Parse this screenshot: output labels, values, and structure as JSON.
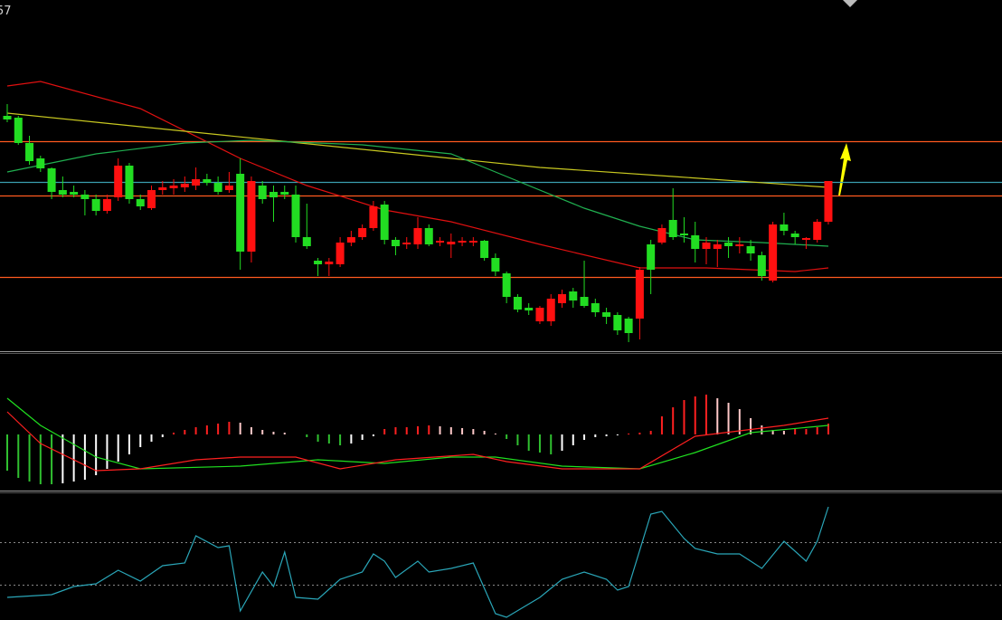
{
  "chart_data": [
    {
      "type": "candlestick",
      "title": "57",
      "open": [
        272,
        270,
        242,
        225,
        214,
        190,
        188,
        185,
        180,
        167,
        182,
        217,
        180,
        170,
        190,
        192,
        193,
        195,
        202,
        198,
        190,
        208,
        122,
        195,
        188,
        188,
        185,
        138,
        112,
        108,
        108,
        132,
        138,
        148,
        174,
        135,
        130,
        130,
        148,
        132,
        130,
        132,
        132,
        134,
        115,
        98,
        72,
        60,
        45,
        45,
        65,
        78,
        72,
        65,
        55,
        52,
        48,
        48,
        130,
        132,
        157,
        142,
        140,
        125,
        125,
        132,
        128,
        128,
        118,
        90,
        152,
        142,
        135,
        135,
        155
      ],
      "high": [
        285,
        272,
        250,
        228,
        215,
        205,
        195,
        190,
        185,
        185,
        225,
        220,
        185,
        195,
        200,
        202,
        205,
        215,
        208,
        205,
        210,
        225,
        205,
        200,
        195,
        195,
        195,
        175,
        115,
        115,
        138,
        145,
        152,
        178,
        178,
        138,
        138,
        160,
        152,
        138,
        142,
        138,
        138,
        135,
        120,
        100,
        75,
        65,
        62,
        75,
        80,
        82,
        112,
        70,
        60,
        55,
        50,
        105,
        135,
        152,
        192,
        160,
        155,
        138,
        135,
        138,
        138,
        135,
        122,
        155,
        165,
        145,
        138,
        158,
        200
      ],
      "low": [
        265,
        240,
        218,
        210,
        180,
        182,
        182,
        162,
        162,
        164,
        178,
        175,
        168,
        168,
        185,
        185,
        188,
        190,
        195,
        185,
        187,
        102,
        110,
        175,
        155,
        180,
        132,
        125,
        95,
        95,
        105,
        128,
        135,
        145,
        130,
        118,
        125,
        125,
        128,
        128,
        115,
        128,
        128,
        112,
        95,
        65,
        55,
        52,
        42,
        40,
        60,
        60,
        60,
        50,
        42,
        30,
        22,
        25,
        75,
        130,
        135,
        132,
        110,
        108,
        105,
        115,
        120,
        112,
        90,
        88,
        140,
        130,
        125,
        132,
        152
      ],
      "close": [
        268,
        242,
        222,
        214,
        188,
        185,
        185,
        180,
        167,
        180,
        217,
        180,
        172,
        190,
        193,
        195,
        197,
        202,
        198,
        188,
        195,
        122,
        200,
        180,
        182,
        185,
        138,
        128,
        108,
        111,
        132,
        138,
        148,
        172,
        135,
        128,
        132,
        148,
        130,
        134,
        133,
        134,
        134,
        115,
        100,
        72,
        58,
        57,
        60,
        70,
        75,
        68,
        62,
        55,
        50,
        35,
        32,
        102,
        102,
        148,
        138,
        140,
        125,
        132,
        130,
        128,
        130,
        120,
        95,
        152,
        145,
        138,
        137,
        155,
        200
      ],
      "up_color": "#ff1010",
      "down_color": "#22dd22",
      "series": [
        {
          "color": "#e01010",
          "x": [
            0,
            3,
            12,
            21,
            27,
            34,
            40,
            48,
            57,
            63,
            71,
            74
          ],
          "values": [
            305,
            310,
            280,
            225,
            195,
            168,
            155,
            130,
            104,
            104,
            100,
            104
          ]
        },
        {
          "color": "#c8c820",
          "x": [
            0,
            12,
            24,
            36,
            48,
            60,
            74
          ],
          "values": [
            275,
            260,
            245,
            230,
            215,
            205,
            193
          ]
        },
        {
          "color": "#20b050",
          "x": [
            0,
            8,
            16,
            22,
            32,
            40,
            45,
            52,
            57,
            62,
            68,
            74
          ],
          "values": [
            210,
            230,
            242,
            245,
            240,
            230,
            205,
            170,
            150,
            135,
            132,
            128
          ]
        }
      ],
      "levels": [
        {
          "value": 244,
          "color": "#ff5a1f"
        },
        {
          "value": 199,
          "color": "#3a9fb0"
        },
        {
          "value": 184,
          "color": "#ff5a1f"
        },
        {
          "value": 94,
          "color": "#ff5a1f"
        }
      ],
      "ylim": [
        12,
        400
      ]
    },
    {
      "type": "macd",
      "values": [
        -40,
        -48,
        -52,
        -55,
        -55,
        -54,
        -52,
        -50,
        -45,
        -38,
        -30,
        -22,
        -14,
        -8,
        -3,
        2,
        5,
        8,
        10,
        12,
        14,
        13,
        8,
        5,
        3,
        2,
        0,
        -3,
        -8,
        -10,
        -12,
        -10,
        -6,
        -2,
        6,
        8,
        8,
        9,
        10,
        9,
        8,
        7,
        6,
        4,
        1,
        -5,
        -12,
        -18,
        -20,
        -22,
        -18,
        -12,
        -6,
        -3,
        -2,
        -1,
        1,
        2,
        4,
        20,
        30,
        38,
        42,
        44,
        40,
        35,
        28,
        18,
        10,
        5,
        4,
        6,
        6,
        8,
        12
      ],
      "rise_up_color": "#ff2020",
      "fall_up_color": "#ffc8c8",
      "fall_down_color": "#30c030",
      "rise_down_color": "#ffffff",
      "series": [
        {
          "color": "#20e020",
          "x": [
            0,
            3,
            8,
            12,
            21,
            28,
            34,
            40,
            44,
            50,
            57,
            62,
            67,
            74
          ],
          "values": [
            40,
            10,
            -25,
            -38,
            -35,
            -28,
            -32,
            -25,
            -25,
            -35,
            -38,
            -20,
            2,
            10
          ]
        },
        {
          "color": "#ff2020",
          "x": [
            0,
            3,
            8,
            12,
            17,
            21,
            26,
            30,
            35,
            42,
            45,
            50,
            57,
            62,
            70,
            74
          ],
          "values": [
            25,
            -10,
            -40,
            -38,
            -28,
            -25,
            -25,
            -38,
            -28,
            -22,
            -30,
            -38,
            -38,
            -2,
            10,
            18
          ]
        }
      ],
      "ylim": [
        -62,
        88
      ]
    },
    {
      "type": "line",
      "series": [
        {
          "color": "#2aa6b8",
          "x": [
            0,
            4,
            6,
            8,
            10,
            12,
            14,
            16,
            17,
            19,
            20,
            21,
            23,
            24,
            25,
            26,
            28,
            30,
            32,
            33,
            34,
            35,
            37,
            38,
            40,
            42,
            44,
            45,
            48,
            50,
            52,
            54,
            55,
            56,
            58,
            59,
            61,
            62,
            64,
            66,
            68,
            70,
            72,
            73,
            74
          ],
          "values": [
            25,
            28,
            37,
            40,
            55,
            43,
            60,
            63,
            93,
            80,
            82,
            10,
            53,
            37,
            75,
            25,
            23,
            45,
            53,
            73,
            65,
            47,
            65,
            53,
            57,
            63,
            7,
            3,
            25,
            45,
            53,
            45,
            33,
            37,
            117,
            120,
            90,
            79,
            73,
            73,
            57,
            87,
            65,
            87,
            125
          ]
        }
      ],
      "levels": [
        86,
        39
      ],
      "level_color": "#888888",
      "ylim": [
        0,
        139
      ]
    }
  ]
}
